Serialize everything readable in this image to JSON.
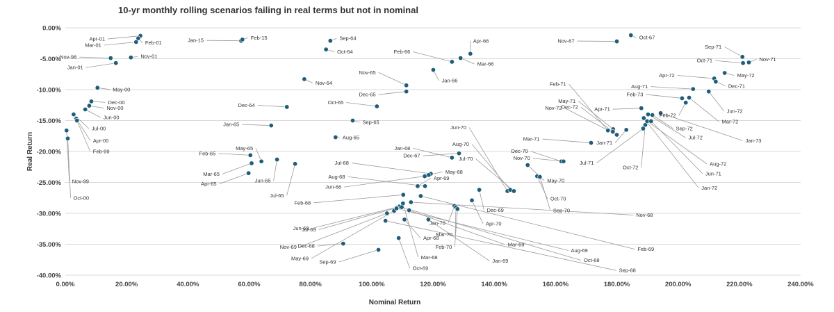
{
  "chart_data": {
    "type": "scatter",
    "title": "10-yr monthly rolling scenarios failing in real terms but not in nominal",
    "xlabel": "Nominal Return",
    "ylabel": "Real Return",
    "xlim": [
      0,
      240
    ],
    "ylim": [
      -40,
      0
    ],
    "x_ticks": [
      "0.00%",
      "20.00%",
      "40.00%",
      "60.00%",
      "80.00%",
      "100.00%",
      "120.00%",
      "140.00%",
      "160.00%",
      "180.00%",
      "200.00%",
      "220.00%",
      "240.00%"
    ],
    "y_ticks": [
      "0.00%",
      "-5.00%",
      "-10.00%",
      "-15.00%",
      "-20.00%",
      "-25.00%",
      "-30.00%",
      "-35.00%",
      "-40.00%"
    ],
    "grid": "horizontal",
    "legend": "none",
    "marker_color": "#1f5d7a",
    "points": [
      {
        "label": "Apr-01",
        "x": 24.5,
        "y": -1.3
      },
      {
        "label": "Feb-01",
        "x": 23.8,
        "y": -1.7
      },
      {
        "label": "Mar-01",
        "x": 23.1,
        "y": -2.3
      },
      {
        "label": "Nov-01",
        "x": 21.4,
        "y": -4.8
      },
      {
        "label": "Nov-98",
        "x": 14.8,
        "y": -4.9
      },
      {
        "label": "Jan-01",
        "x": 16.5,
        "y": -5.7
      },
      {
        "label": "May-00",
        "x": 10.5,
        "y": -9.7
      },
      {
        "label": "Dec-00",
        "x": 8.5,
        "y": -11.9
      },
      {
        "label": "Nov-00",
        "x": 7.8,
        "y": -12.6
      },
      {
        "label": "Jun-00",
        "x": 6.5,
        "y": -13.2
      },
      {
        "label": "Jul-00",
        "x": 2.7,
        "y": -14.0
      },
      {
        "label": "Apr-00",
        "x": 3.6,
        "y": -14.7
      },
      {
        "label": "Feb-99",
        "x": 3.8,
        "y": -15.0
      },
      {
        "label": "Nov-99",
        "x": 0.4,
        "y": -16.6
      },
      {
        "label": "Oct-00",
        "x": 0.8,
        "y": -17.9
      },
      {
        "label": "Jan-15",
        "x": 57.4,
        "y": -2.1
      },
      {
        "label": "Feb-15",
        "x": 57.8,
        "y": -1.9
      },
      {
        "label": "Nov-64",
        "x": 78.0,
        "y": -8.3
      },
      {
        "label": "Dec-64",
        "x": 72.3,
        "y": -12.8
      },
      {
        "label": "Jan-65",
        "x": 67.2,
        "y": -15.8
      },
      {
        "label": "Feb-65",
        "x": 60.4,
        "y": -20.6
      },
      {
        "label": "May-65",
        "x": 64.0,
        "y": -21.6
      },
      {
        "label": "Mar-65",
        "x": 60.8,
        "y": -21.9
      },
      {
        "label": "Jun-65",
        "x": 69.1,
        "y": -21.3
      },
      {
        "label": "Jul-65",
        "x": 75.0,
        "y": -22.0
      },
      {
        "label": "Apr-65",
        "x": 59.8,
        "y": -23.5
      },
      {
        "label": "Sep-64",
        "x": 86.5,
        "y": -2.1
      },
      {
        "label": "Oct-64",
        "x": 85.1,
        "y": -3.5
      },
      {
        "label": "Aug-65",
        "x": 88.2,
        "y": -17.7
      },
      {
        "label": "Sep-65",
        "x": 93.8,
        "y": -15.0
      },
      {
        "label": "Oct-65",
        "x": 101.7,
        "y": -12.7
      },
      {
        "label": "Nov-65",
        "x": 111.3,
        "y": -9.3
      },
      {
        "label": "Dec-65",
        "x": 111.3,
        "y": -10.3
      },
      {
        "label": "Jan-66",
        "x": 120.1,
        "y": -6.8
      },
      {
        "label": "Feb-66",
        "x": 126.2,
        "y": -5.5
      },
      {
        "label": "Apr-66",
        "x": 132.2,
        "y": -4.2
      },
      {
        "label": "Mar-66",
        "x": 129.0,
        "y": -4.9
      },
      {
        "label": "Jan-68",
        "x": 126.2,
        "y": -21.0
      },
      {
        "label": "Dec-67",
        "x": 128.5,
        "y": -20.3
      },
      {
        "label": "Jul-68",
        "x": 119.3,
        "y": -23.6
      },
      {
        "label": "May-68",
        "x": 118.6,
        "y": -23.8
      },
      {
        "label": "Jun-68",
        "x": 117.3,
        "y": -24.0
      },
      {
        "label": "Aug-68",
        "x": 117.4,
        "y": -25.6
      },
      {
        "label": "Apr-69",
        "x": 115.0,
        "y": -25.6
      },
      {
        "label": "Feb-68",
        "x": 110.3,
        "y": -27.0
      },
      {
        "label": "Jun-69",
        "x": 109.0,
        "y": -28.9
      },
      {
        "label": "Jul-69",
        "x": 108.1,
        "y": -29.1
      },
      {
        "label": "Nov-69",
        "x": 105.0,
        "y": -30.0
      },
      {
        "label": "May-69",
        "x": 107.3,
        "y": -29.6
      },
      {
        "label": "Dec-68",
        "x": 90.7,
        "y": -34.9
      },
      {
        "label": "Sep-69",
        "x": 102.2,
        "y": -35.9
      },
      {
        "label": "Apr-68",
        "x": 110.7,
        "y": -31.0
      },
      {
        "label": "Oct-69",
        "x": 108.8,
        "y": -34.0
      },
      {
        "label": "Mar-68",
        "x": 110.2,
        "y": -28.4
      },
      {
        "label": "Jan-70",
        "x": 127.0,
        "y": -28.8
      },
      {
        "label": "Mar-70",
        "x": 127.5,
        "y": -29.0
      },
      {
        "label": "Feb-70",
        "x": 128.0,
        "y": -29.3
      },
      {
        "label": "Jun-70",
        "x": 144.3,
        "y": -26.4
      },
      {
        "label": "Aug-70",
        "x": 145.2,
        "y": -26.2
      },
      {
        "label": "Jul-70",
        "x": 146.4,
        "y": -26.4
      },
      {
        "label": "Dec-69",
        "x": 135.1,
        "y": -26.2
      },
      {
        "label": "Apr-70",
        "x": 132.7,
        "y": -27.9
      },
      {
        "label": "Nov-68",
        "x": 112.8,
        "y": -28.2
      },
      {
        "label": "Feb-69",
        "x": 116.0,
        "y": -27.2
      },
      {
        "label": "Mar-69",
        "x": 112.2,
        "y": -29.5
      },
      {
        "label": "Aug-69",
        "x": 108.1,
        "y": -29.2
      },
      {
        "label": "Sep-68",
        "x": 104.5,
        "y": -31.2
      },
      {
        "label": "Jan-69",
        "x": 118.5,
        "y": -31.0
      },
      {
        "label": "Oct-68",
        "x": 109.8,
        "y": -29.0
      },
      {
        "label": "Dec-70",
        "x": 161.9,
        "y": -21.6
      },
      {
        "label": "Nov-70",
        "x": 162.6,
        "y": -21.6
      },
      {
        "label": "May-70",
        "x": 150.9,
        "y": -22.2
      },
      {
        "label": "Oct-70",
        "x": 154.0,
        "y": -24.0
      },
      {
        "label": "Sep-70",
        "x": 154.9,
        "y": -24.1
      },
      {
        "label": "Nov-67",
        "x": 180.0,
        "y": -2.2
      },
      {
        "label": "Oct-67",
        "x": 184.6,
        "y": -1.2
      },
      {
        "label": "Feb-71",
        "x": 177.1,
        "y": -16.6
      },
      {
        "label": "May-71",
        "x": 178.8,
        "y": -16.4
      },
      {
        "label": "Mar-71",
        "x": 171.6,
        "y": -18.6
      },
      {
        "label": "Dec-72",
        "x": 178.7,
        "y": -16.8
      },
      {
        "label": "Nov-72",
        "x": 180.0,
        "y": -17.3
      },
      {
        "label": "Jan-71",
        "x": 183.1,
        "y": -16.5
      },
      {
        "label": "Apr-71",
        "x": 188.0,
        "y": -13.0
      },
      {
        "label": "Sep-71",
        "x": 221.0,
        "y": -4.7
      },
      {
        "label": "Oct-71",
        "x": 221.2,
        "y": -5.7
      },
      {
        "label": "Nov-71",
        "x": 223.1,
        "y": -5.6
      },
      {
        "label": "May-72",
        "x": 215.2,
        "y": -7.3
      },
      {
        "label": "Apr-72",
        "x": 211.8,
        "y": -8.2
      },
      {
        "label": "Dec-71",
        "x": 212.3,
        "y": -8.7
      },
      {
        "label": "Aug-71",
        "x": 204.9,
        "y": -9.9
      },
      {
        "label": "Jun-72",
        "x": 210.0,
        "y": -10.3
      },
      {
        "label": "Feb-73",
        "x": 201.3,
        "y": -11.4
      },
      {
        "label": "Feb-72",
        "x": 202.5,
        "y": -12.1
      },
      {
        "label": "Mar-72",
        "x": 203.6,
        "y": -11.3
      },
      {
        "label": "Sep-72",
        "x": 191.6,
        "y": -14.1
      },
      {
        "label": "Jul-72",
        "x": 190.2,
        "y": -14.0
      },
      {
        "label": "Jan-73",
        "x": 194.3,
        "y": -13.8
      },
      {
        "label": "Jul-71",
        "x": 188.6,
        "y": -16.3
      },
      {
        "label": "Oct-72",
        "x": 189.3,
        "y": -15.7
      },
      {
        "label": "Aug-72",
        "x": 189.9,
        "y": -15.1
      },
      {
        "label": "Jun-71",
        "x": 191.2,
        "y": -15.1
      },
      {
        "label": "Jan-72",
        "x": 188.8,
        "y": -14.6
      }
    ]
  }
}
